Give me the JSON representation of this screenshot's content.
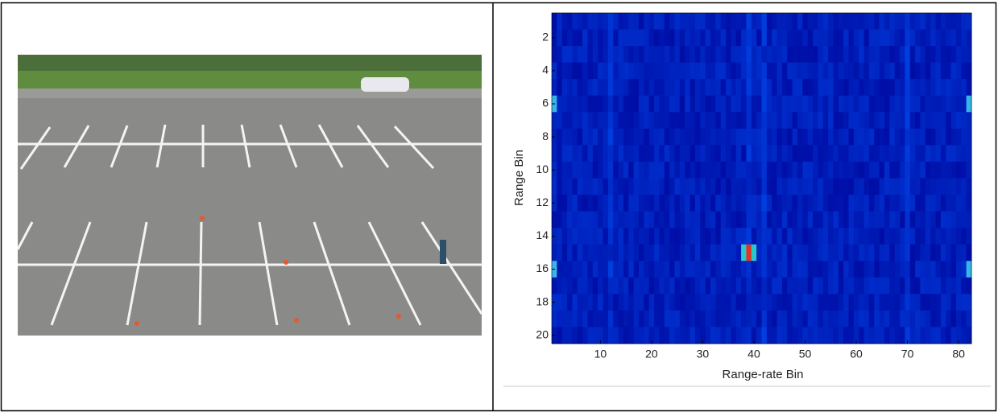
{
  "chart_data": {
    "type": "heatmap",
    "xlabel": "Range-rate Bin",
    "ylabel": "Range Bin",
    "xlim": [
      0.5,
      82.5
    ],
    "ylim": [
      0.5,
      20.5
    ],
    "y_inverted": true,
    "xticks": [
      10,
      20,
      30,
      40,
      50,
      60,
      70,
      80
    ],
    "yticks": [
      2,
      4,
      6,
      8,
      10,
      12,
      14,
      16,
      18,
      20
    ]
  }
}
